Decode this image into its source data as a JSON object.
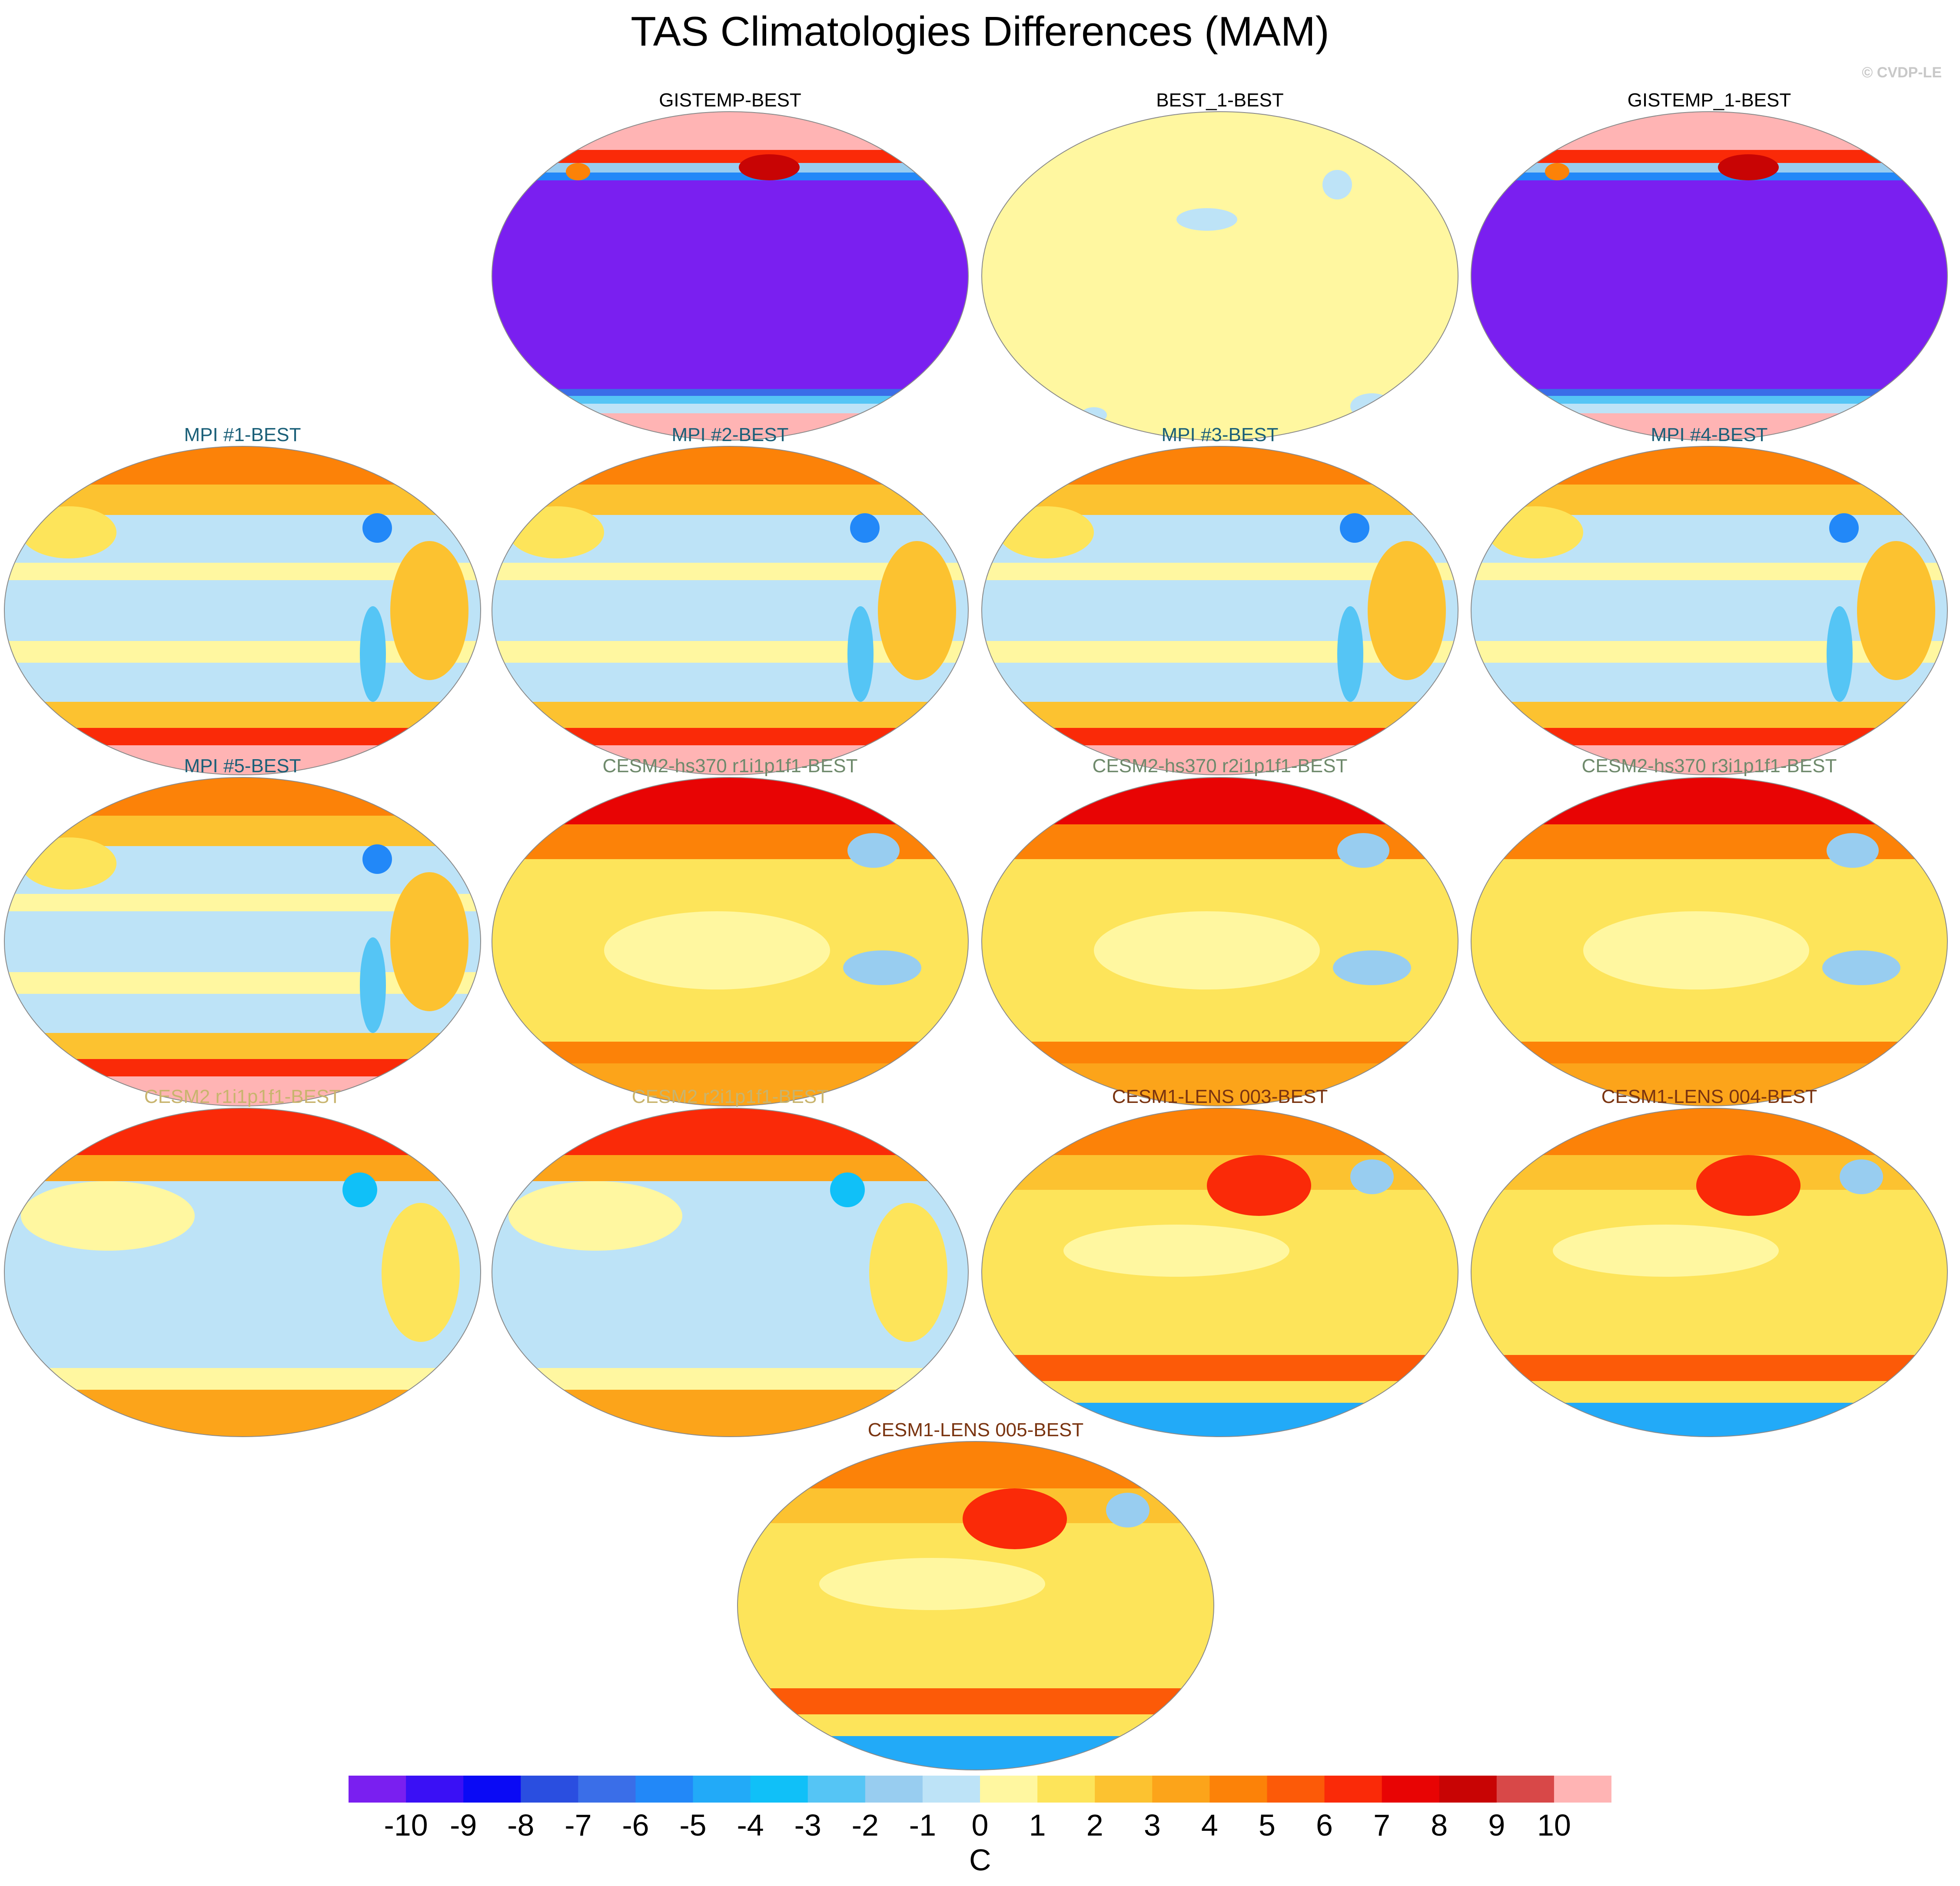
{
  "title": "TAS Climatologies Differences (MAM)",
  "watermark": "© CVDP-LE",
  "panels": [
    {
      "label": "GISTEMP-BEST",
      "title_color": "#000000",
      "pattern": "obs-diff"
    },
    {
      "label": "BEST_1-BEST",
      "title_color": "#000000",
      "pattern": "near-zero"
    },
    {
      "label": "GISTEMP_1-BEST",
      "title_color": "#000000",
      "pattern": "obs-diff"
    },
    {
      "label": "MPI #1-BEST",
      "title_color": "#1a5f78",
      "pattern": "mpi"
    },
    {
      "label": "MPI #2-BEST",
      "title_color": "#1a5f78",
      "pattern": "mpi"
    },
    {
      "label": "MPI #3-BEST",
      "title_color": "#1a5f78",
      "pattern": "mpi"
    },
    {
      "label": "MPI #4-BEST",
      "title_color": "#1a5f78",
      "pattern": "mpi"
    },
    {
      "label": "MPI #5-BEST",
      "title_color": "#1a5f78",
      "pattern": "mpi"
    },
    {
      "label": "CESM2-hs370 r1i1p1f1-BEST",
      "title_color": "#6f8a6c",
      "pattern": "cesm2hs"
    },
    {
      "label": "CESM2-hs370 r2i1p1f1-BEST",
      "title_color": "#6f8a6c",
      "pattern": "cesm2hs"
    },
    {
      "label": "CESM2-hs370 r3i1p1f1-BEST",
      "title_color": "#6f8a6c",
      "pattern": "cesm2hs"
    },
    {
      "label": "CESM2 r1i1p1f1-BEST",
      "title_color": "#c8b46e",
      "pattern": "cesm2"
    },
    {
      "label": "CESM2 r2i1p1f1-BEST",
      "title_color": "#c8b46e",
      "pattern": "cesm2"
    },
    {
      "label": "CESM1-LENS 003-BEST",
      "title_color": "#7a3410",
      "pattern": "cesm1"
    },
    {
      "label": "CESM1-LENS 004-BEST",
      "title_color": "#7a3410",
      "pattern": "cesm1"
    },
    {
      "label": "CESM1-LENS 005-BEST",
      "title_color": "#7a3410",
      "pattern": "cesm1"
    }
  ],
  "colorbar": {
    "units": "C",
    "labels": [
      "-10",
      "-9",
      "-8",
      "-7",
      "-6",
      "-5",
      "-4",
      "-3",
      "-2",
      "-1",
      "0",
      "1",
      "2",
      "3",
      "4",
      "5",
      "6",
      "7",
      "8",
      "9",
      "10"
    ],
    "colors": [
      "#7a1ff0",
      "#3a10f5",
      "#0a0af5",
      "#2a4ee0",
      "#3a6ee8",
      "#2288f8",
      "#22aaf8",
      "#10c0f8",
      "#55c5f5",
      "#98cdf0",
      "#bde3f7",
      "#fff7a0",
      "#fde45a",
      "#fcc230",
      "#fca41a",
      "#fc8208",
      "#fc5a08",
      "#fa2a08",
      "#e80404",
      "#c80404",
      "#d84848",
      "#ffb4b4"
    ]
  }
}
